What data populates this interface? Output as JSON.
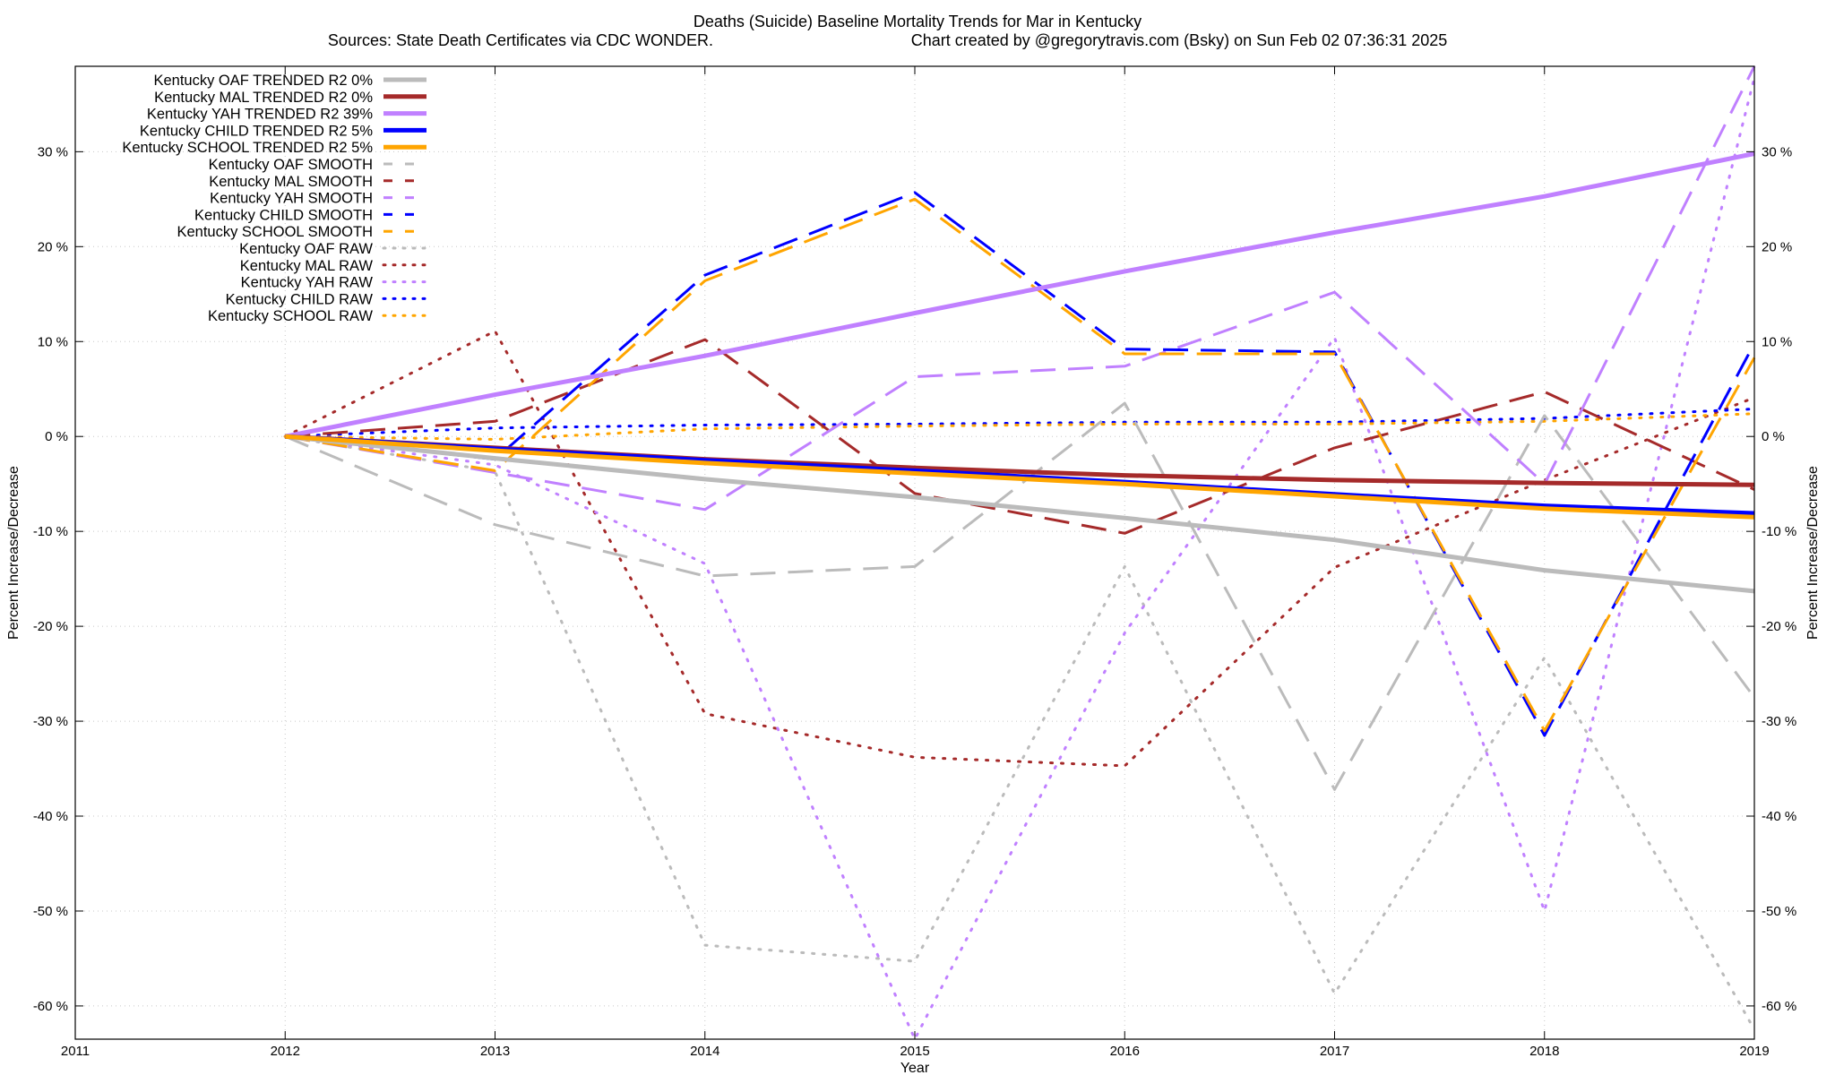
{
  "chart_data": {
    "type": "line",
    "title": "Deaths (Suicide)  Baseline Mortality Trends for Mar in Kentucky",
    "subtitle_left": "Sources: State Death Certificates via CDC WONDER.",
    "subtitle_right": "Chart created by @gregorytravis.com (Bsky) on Sun Feb 02 07:36:31 2025",
    "xlabel": "Year",
    "ylabel_left": "Percent Increase/Decrease",
    "ylabel_right": "Percent Increase/Decrease",
    "xlim": [
      2011,
      2019
    ],
    "ylim": [
      -63.5,
      39
    ],
    "x_ticks": [
      2011,
      2012,
      2013,
      2014,
      2015,
      2016,
      2017,
      2018,
      2019
    ],
    "y_ticks": [
      30,
      20,
      10,
      0,
      -10,
      -20,
      -30,
      -40,
      -50,
      -60
    ],
    "y_tick_suffix": " %",
    "grid": true,
    "legend_position": "top-left",
    "series": [
      {
        "name": "Kentucky OAF TRENDED R2   0%",
        "color": "#bbbbbb",
        "style": "solid",
        "x": [
          2012,
          2013,
          2014,
          2015,
          2016,
          2017,
          2018,
          2019
        ],
        "y": [
          0,
          -2.3,
          -4.5,
          -6.4,
          -8.6,
          -10.9,
          -14.1,
          -16.3
        ]
      },
      {
        "name": "Kentucky MAL TRENDED R2   0%",
        "color": "#a52a2a",
        "style": "solid",
        "x": [
          2012,
          2013,
          2014,
          2015,
          2016,
          2017,
          2018,
          2019
        ],
        "y": [
          0,
          -1.2,
          -2.4,
          -3.3,
          -4.1,
          -4.6,
          -4.9,
          -5.1
        ]
      },
      {
        "name": "Kentucky YAH TRENDED R2  39%",
        "color": "#c080ff",
        "style": "solid",
        "x": [
          2012,
          2013,
          2014,
          2015,
          2016,
          2017,
          2018,
          2019
        ],
        "y": [
          0,
          4.4,
          8.5,
          13.0,
          17.4,
          21.5,
          25.3,
          29.8
        ]
      },
      {
        "name": "Kentucky CHILD TRENDED R2   5%",
        "color": "#0000ff",
        "style": "solid",
        "x": [
          2012,
          2013,
          2014,
          2015,
          2016,
          2017,
          2018,
          2019
        ],
        "y": [
          0,
          -1.3,
          -2.5,
          -3.6,
          -4.8,
          -6.1,
          -7.3,
          -8.1
        ]
      },
      {
        "name": "Kentucky SCHOOL TRENDED R2   5%",
        "color": "#ffa500",
        "style": "solid",
        "x": [
          2012,
          2013,
          2014,
          2015,
          2016,
          2017,
          2018,
          2019
        ],
        "y": [
          0,
          -1.5,
          -2.8,
          -3.9,
          -5.0,
          -6.3,
          -7.6,
          -8.5
        ]
      },
      {
        "name": "Kentucky OAF SMOOTH",
        "color": "#bbbbbb",
        "style": "dashed",
        "x": [
          2012,
          2013,
          2014,
          2015,
          2016,
          2017,
          2018,
          2019
        ],
        "y": [
          0,
          -9.3,
          -14.7,
          -13.7,
          3.5,
          -37.2,
          2.2,
          -27.5
        ]
      },
      {
        "name": "Kentucky MAL SMOOTH",
        "color": "#a52a2a",
        "style": "dashed",
        "x": [
          2012,
          2013,
          2014,
          2015,
          2016,
          2017,
          2018,
          2019
        ],
        "y": [
          0,
          1.6,
          10.2,
          -6.0,
          -10.2,
          -1.2,
          4.7,
          -5.6
        ]
      },
      {
        "name": "Kentucky YAH SMOOTH",
        "color": "#c080ff",
        "style": "dashed",
        "x": [
          2012,
          2013,
          2014,
          2015,
          2016,
          2017,
          2018,
          2019
        ],
        "y": [
          0,
          -3.8,
          -7.7,
          6.3,
          7.4,
          15.2,
          -5.0,
          39.0
        ]
      },
      {
        "name": "Kentucky CHILD SMOOTH",
        "color": "#0000ff",
        "style": "dashed",
        "x": [
          2012,
          2013,
          2014,
          2015,
          2016,
          2017,
          2018,
          2019
        ],
        "y": [
          0,
          -2.4,
          17.0,
          25.7,
          9.2,
          8.9,
          -31.5,
          9.8
        ]
      },
      {
        "name": "Kentucky SCHOOL SMOOTH",
        "color": "#ffa500",
        "style": "dashed",
        "x": [
          2012,
          2013,
          2014,
          2015,
          2016,
          2017,
          2018,
          2019
        ],
        "y": [
          0,
          -3.6,
          16.4,
          25.0,
          8.7,
          8.7,
          -31.0,
          8.3
        ]
      },
      {
        "name": "Kentucky OAF RAW",
        "color": "#bbbbbb",
        "style": "dotted",
        "x": [
          2012,
          2013,
          2014,
          2015,
          2016,
          2017,
          2018,
          2019
        ],
        "y": [
          0,
          -3.7,
          -53.6,
          -55.3,
          -13.7,
          -58.7,
          -23.3,
          -62.5
        ]
      },
      {
        "name": "Kentucky MAL RAW",
        "color": "#a52a2a",
        "style": "dotted",
        "x": [
          2012,
          2013,
          2014,
          2015,
          2016,
          2017,
          2018,
          2019
        ],
        "y": [
          0,
          11.1,
          -29.2,
          -33.8,
          -34.7,
          -13.8,
          -4.6,
          4.1
        ]
      },
      {
        "name": "Kentucky YAH RAW",
        "color": "#c080ff",
        "style": "dotted",
        "x": [
          2012,
          2013,
          2014,
          2015,
          2016,
          2017,
          2018,
          2019
        ],
        "y": [
          0,
          -3.0,
          -13.4,
          -63.5,
          -20.7,
          10.4,
          -50.0,
          37.8
        ]
      },
      {
        "name": "Kentucky CHILD RAW",
        "color": "#0000ff",
        "style": "dotted",
        "x": [
          2012,
          2013,
          2014,
          2015,
          2016,
          2017,
          2018,
          2019
        ],
        "y": [
          0,
          0.9,
          1.2,
          1.3,
          1.5,
          1.5,
          1.9,
          2.9
        ]
      },
      {
        "name": "Kentucky SCHOOL RAW",
        "color": "#ffa500",
        "style": "dotted",
        "x": [
          2012,
          2013,
          2014,
          2015,
          2016,
          2017,
          2018,
          2019
        ],
        "y": [
          0,
          -0.3,
          0.8,
          1.1,
          1.3,
          1.3,
          1.6,
          2.4
        ]
      }
    ]
  }
}
